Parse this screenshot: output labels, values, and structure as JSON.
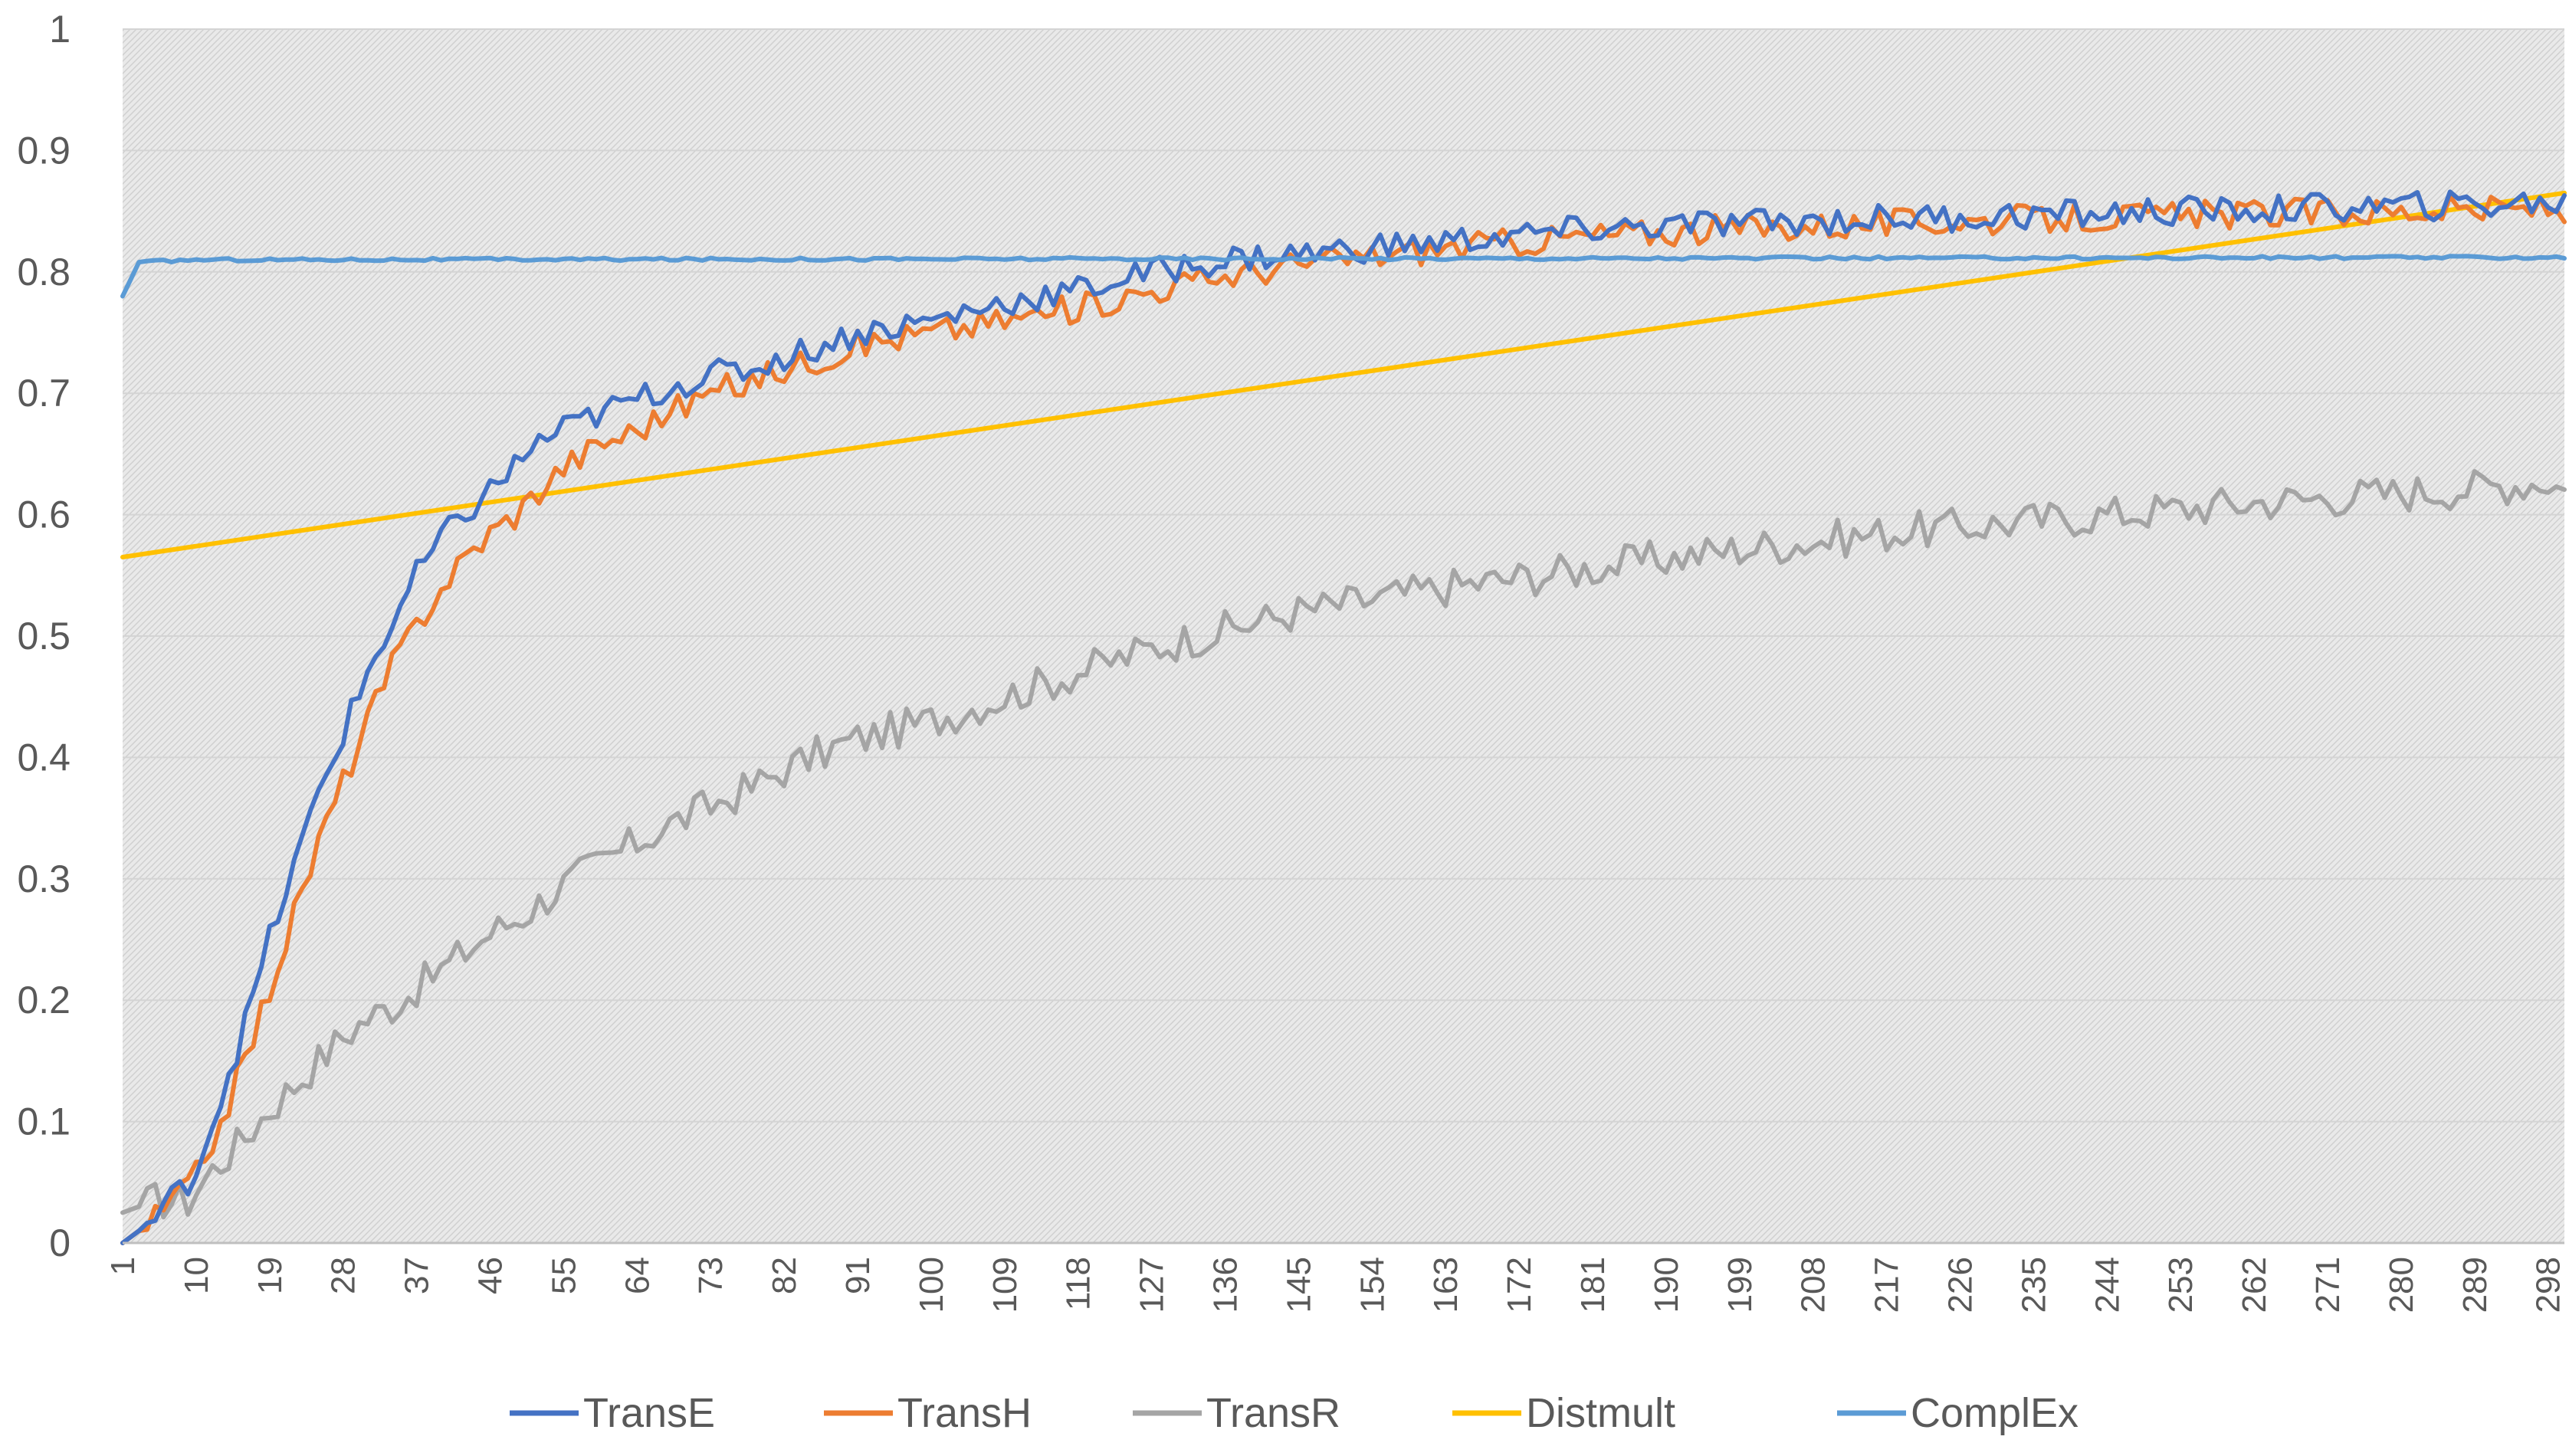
{
  "chart_data": {
    "type": "line",
    "title": "",
    "xlabel": "",
    "ylabel": "",
    "ylim": [
      0,
      1
    ],
    "xlim": [
      1,
      300
    ],
    "grid": true,
    "legend_position": "bottom",
    "y_ticks": [
      "0",
      "0.1",
      "0.2",
      "0.3",
      "0.4",
      "0.5",
      "0.6",
      "0.7",
      "0.8",
      "0.9",
      "1"
    ],
    "x_ticks": [
      "1",
      "10",
      "19",
      "28",
      "37",
      "46",
      "55",
      "64",
      "73",
      "82",
      "91",
      "100",
      "109",
      "118",
      "127",
      "136",
      "145",
      "154",
      "163",
      "172",
      "181",
      "190",
      "199",
      "208",
      "217",
      "226",
      "235",
      "244",
      "253",
      "262",
      "271",
      "280",
      "289",
      "298"
    ],
    "series": [
      {
        "name": "TransE",
        "color": "#4472C4",
        "points": [
          [
            1,
            0.0
          ],
          [
            5,
            0.02
          ],
          [
            10,
            0.06
          ],
          [
            13,
            0.12
          ],
          [
            16,
            0.18
          ],
          [
            19,
            0.25
          ],
          [
            22,
            0.31
          ],
          [
            25,
            0.37
          ],
          [
            28,
            0.42
          ],
          [
            31,
            0.47
          ],
          [
            34,
            0.51
          ],
          [
            37,
            0.55
          ],
          [
            40,
            0.58
          ],
          [
            43,
            0.6
          ],
          [
            46,
            0.62
          ],
          [
            49,
            0.64
          ],
          [
            52,
            0.66
          ],
          [
            55,
            0.67
          ],
          [
            60,
            0.685
          ],
          [
            64,
            0.695
          ],
          [
            68,
            0.705
          ],
          [
            73,
            0.715
          ],
          [
            78,
            0.72
          ],
          [
            82,
            0.73
          ],
          [
            87,
            0.74
          ],
          [
            91,
            0.75
          ],
          [
            100,
            0.76
          ],
          [
            109,
            0.775
          ],
          [
            118,
            0.785
          ],
          [
            127,
            0.8
          ],
          [
            136,
            0.81
          ],
          [
            145,
            0.815
          ],
          [
            154,
            0.82
          ],
          [
            163,
            0.825
          ],
          [
            172,
            0.83
          ],
          [
            181,
            0.835
          ],
          [
            190,
            0.838
          ],
          [
            199,
            0.84
          ],
          [
            208,
            0.842
          ],
          [
            217,
            0.844
          ],
          [
            226,
            0.845
          ],
          [
            235,
            0.847
          ],
          [
            244,
            0.848
          ],
          [
            253,
            0.85
          ],
          [
            262,
            0.851
          ],
          [
            271,
            0.853
          ],
          [
            280,
            0.854
          ],
          [
            289,
            0.855
          ],
          [
            298,
            0.857
          ],
          [
            300,
            0.857
          ]
        ]
      },
      {
        "name": "TransH",
        "color": "#ED7D31",
        "points": [
          [
            1,
            0.0
          ],
          [
            5,
            0.02
          ],
          [
            10,
            0.055
          ],
          [
            13,
            0.1
          ],
          [
            16,
            0.15
          ],
          [
            19,
            0.21
          ],
          [
            22,
            0.27
          ],
          [
            25,
            0.33
          ],
          [
            28,
            0.38
          ],
          [
            31,
            0.43
          ],
          [
            34,
            0.475
          ],
          [
            37,
            0.51
          ],
          [
            40,
            0.54
          ],
          [
            43,
            0.565
          ],
          [
            46,
            0.585
          ],
          [
            49,
            0.6
          ],
          [
            52,
            0.62
          ],
          [
            55,
            0.64
          ],
          [
            60,
            0.66
          ],
          [
            64,
            0.67
          ],
          [
            68,
            0.685
          ],
          [
            73,
            0.7
          ],
          [
            78,
            0.71
          ],
          [
            82,
            0.72
          ],
          [
            87,
            0.73
          ],
          [
            91,
            0.74
          ],
          [
            100,
            0.75
          ],
          [
            109,
            0.76
          ],
          [
            118,
            0.77
          ],
          [
            127,
            0.785
          ],
          [
            136,
            0.797
          ],
          [
            145,
            0.806
          ],
          [
            154,
            0.813
          ],
          [
            163,
            0.82
          ],
          [
            172,
            0.825
          ],
          [
            181,
            0.83
          ],
          [
            190,
            0.833
          ],
          [
            199,
            0.836
          ],
          [
            208,
            0.838
          ],
          [
            217,
            0.84
          ],
          [
            226,
            0.842
          ],
          [
            235,
            0.843
          ],
          [
            244,
            0.845
          ],
          [
            253,
            0.846
          ],
          [
            262,
            0.848
          ],
          [
            271,
            0.849
          ],
          [
            280,
            0.85
          ],
          [
            289,
            0.851
          ],
          [
            298,
            0.852
          ],
          [
            300,
            0.845
          ]
        ]
      },
      {
        "name": "TransR",
        "color": "#A5A5A5",
        "points": [
          [
            1,
            0.025
          ],
          [
            5,
            0.035
          ],
          [
            9,
            0.035
          ],
          [
            12,
            0.06
          ],
          [
            15,
            0.08
          ],
          [
            19,
            0.11
          ],
          [
            22,
            0.13
          ],
          [
            25,
            0.15
          ],
          [
            28,
            0.17
          ],
          [
            31,
            0.185
          ],
          [
            34,
            0.195
          ],
          [
            37,
            0.21
          ],
          [
            40,
            0.225
          ],
          [
            43,
            0.24
          ],
          [
            46,
            0.255
          ],
          [
            50,
            0.27
          ],
          [
            55,
            0.295
          ],
          [
            60,
            0.315
          ],
          [
            64,
            0.33
          ],
          [
            68,
            0.345
          ],
          [
            73,
            0.36
          ],
          [
            78,
            0.375
          ],
          [
            82,
            0.39
          ],
          [
            87,
            0.405
          ],
          [
            91,
            0.415
          ],
          [
            100,
            0.43
          ],
          [
            109,
            0.45
          ],
          [
            118,
            0.47
          ],
          [
            127,
            0.49
          ],
          [
            136,
            0.505
          ],
          [
            145,
            0.52
          ],
          [
            154,
            0.53
          ],
          [
            163,
            0.54
          ],
          [
            172,
            0.548
          ],
          [
            181,
            0.556
          ],
          [
            190,
            0.564
          ],
          [
            199,
            0.572
          ],
          [
            208,
            0.578
          ],
          [
            217,
            0.585
          ],
          [
            226,
            0.59
          ],
          [
            235,
            0.595
          ],
          [
            244,
            0.6
          ],
          [
            253,
            0.605
          ],
          [
            262,
            0.61
          ],
          [
            271,
            0.614
          ],
          [
            280,
            0.618
          ],
          [
            289,
            0.622
          ],
          [
            298,
            0.628
          ],
          [
            300,
            0.62
          ]
        ]
      },
      {
        "name": "Distmult",
        "color": "#FFC000",
        "points": [
          [
            1,
            0.565
          ],
          [
            300,
            0.865
          ]
        ]
      },
      {
        "name": "ComplEx",
        "color": "#5B9BD5",
        "points": [
          [
            1,
            0.78
          ],
          [
            3,
            0.808
          ],
          [
            10,
            0.81
          ],
          [
            300,
            0.812
          ]
        ]
      }
    ]
  }
}
